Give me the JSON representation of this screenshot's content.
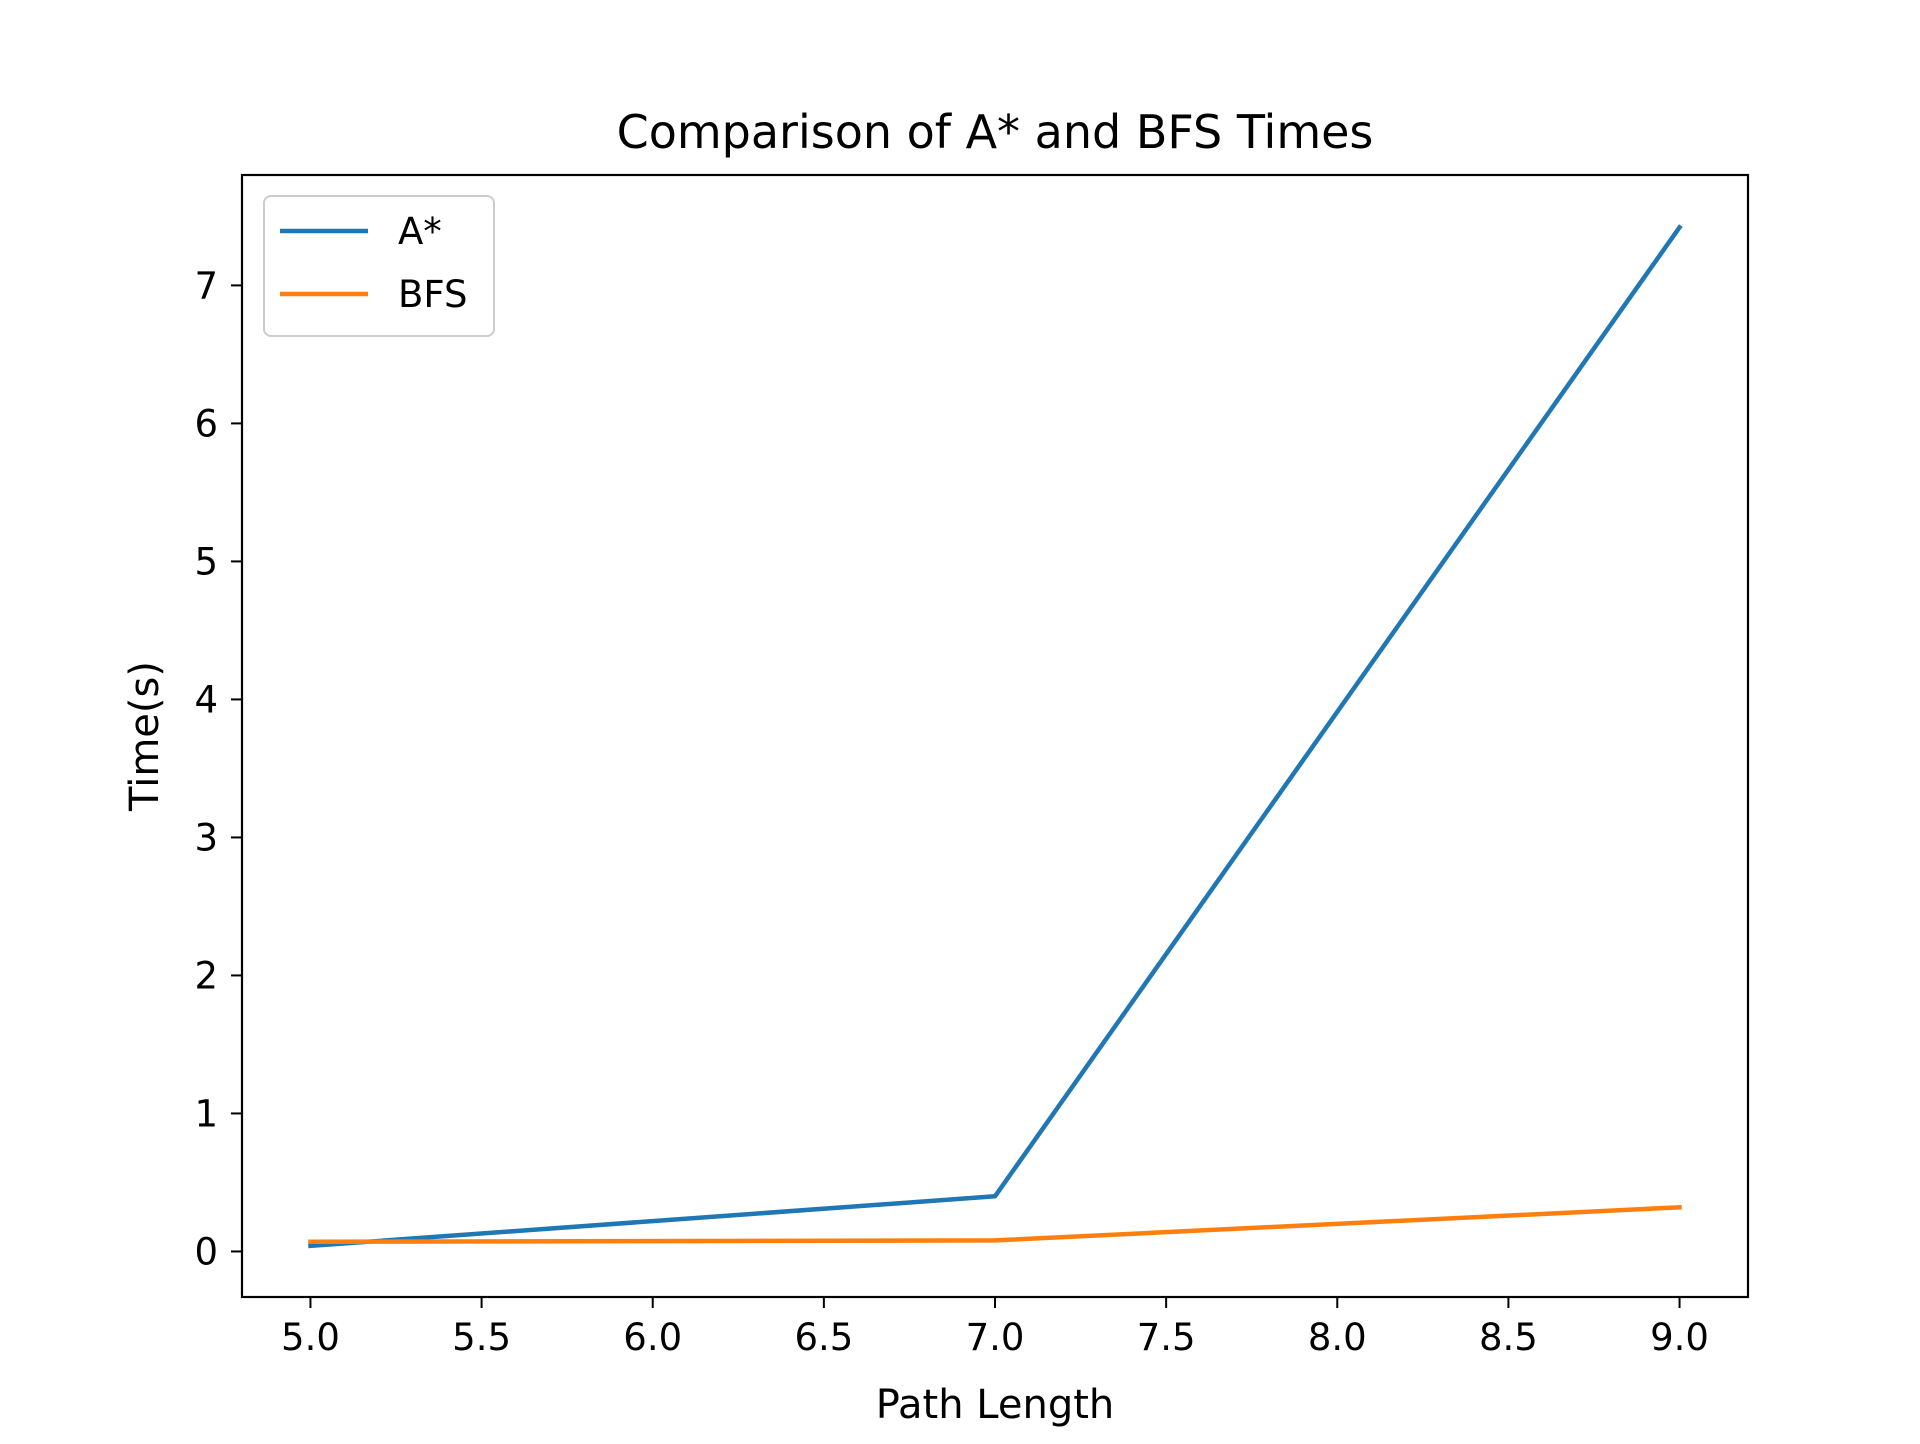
{
  "chart_data": {
    "type": "line",
    "title": "Comparison of A* and BFS Times",
    "xlabel": "Path Length",
    "ylabel": "Time(s)",
    "xlim": [
      4.8,
      9.2
    ],
    "ylim": [
      -0.33,
      7.8
    ],
    "xticks": [
      5.0,
      5.5,
      6.0,
      6.5,
      7.0,
      7.5,
      8.0,
      8.5,
      9.0
    ],
    "xtick_labels": [
      "5.0",
      "5.5",
      "6.0",
      "6.5",
      "7.0",
      "7.5",
      "8.0",
      "8.5",
      "9.0"
    ],
    "yticks": [
      0,
      1,
      2,
      3,
      4,
      5,
      6,
      7
    ],
    "ytick_labels": [
      "0",
      "1",
      "2",
      "3",
      "4",
      "5",
      "6",
      "7"
    ],
    "grid": false,
    "legend_position": "top-left",
    "x": [
      5,
      7,
      9
    ],
    "series": [
      {
        "name": "A*",
        "color": "#1f77b4",
        "values": [
          0.04,
          0.4,
          7.42
        ]
      },
      {
        "name": "BFS",
        "color": "#ff7f0e",
        "values": [
          0.07,
          0.08,
          0.32
        ]
      }
    ]
  }
}
